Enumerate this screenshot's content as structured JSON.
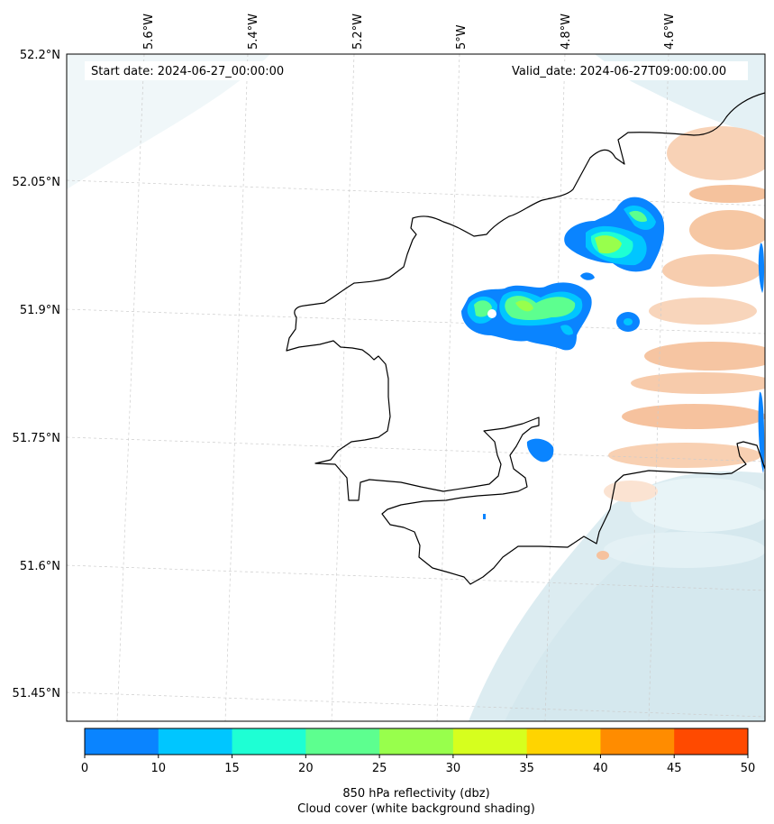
{
  "map": {
    "start_date": "Start date: 2024-06-27_00:00:00",
    "valid_date": "Valid_date: 2024-06-27T09:00:00.00",
    "lon_ticks": [
      "5.6°W",
      "5.4°W",
      "5.2°W",
      "5°W",
      "4.8°W",
      "4.6°W"
    ],
    "lat_ticks": [
      "52.2°N",
      "52.05°N",
      "51.9°N",
      "51.75°N",
      "51.6°N",
      "51.45°N"
    ],
    "gridlines": true
  },
  "colorbar": {
    "ticks": [
      "0",
      "10",
      "15",
      "20",
      "25",
      "30",
      "35",
      "40",
      "45",
      "50"
    ],
    "colors": [
      "#0a84ff",
      "#00c6ff",
      "#1effd4",
      "#5dff8f",
      "#98ff4c",
      "#d6ff1e",
      "#ffd400",
      "#ff8c00",
      "#ff4a00"
    ],
    "label_line1": "850 hPa reflectivity (dbz)",
    "label_line2": "Cloud cover (white background shading)"
  }
}
